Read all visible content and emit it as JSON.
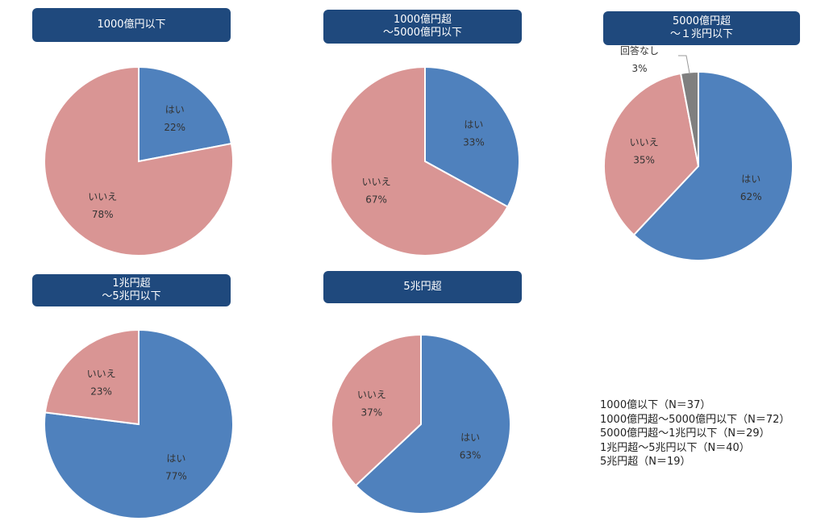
{
  "colors": {
    "yes": "#4f81bd",
    "no": "#d99594",
    "none": "#7f7f7f",
    "header": "#1f497d"
  },
  "chart_data": [
    {
      "type": "pie",
      "title": [
        "1000億円以下"
      ],
      "slices": [
        {
          "label": "はい",
          "value": 22,
          "text": "22%"
        },
        {
          "label": "いいえ",
          "value": 78,
          "text": "78%"
        }
      ]
    },
    {
      "type": "pie",
      "title": [
        "1000億円超",
        "～5000億円以下"
      ],
      "slices": [
        {
          "label": "はい",
          "value": 33,
          "text": "33%"
        },
        {
          "label": "いいえ",
          "value": 67,
          "text": "67%"
        }
      ]
    },
    {
      "type": "pie",
      "title": [
        "5000億円超",
        "～１兆円以下"
      ],
      "slices": [
        {
          "label": "はい",
          "value": 62,
          "text": "62%"
        },
        {
          "label": "いいえ",
          "value": 35,
          "text": "35%"
        },
        {
          "label": "回答なし",
          "value": 3,
          "text": "3%"
        }
      ]
    },
    {
      "type": "pie",
      "title": [
        "1兆円超",
        "～5兆円以下"
      ],
      "slices": [
        {
          "label": "はい",
          "value": 77,
          "text": "77%"
        },
        {
          "label": "いいえ",
          "value": 23,
          "text": "23%"
        }
      ]
    },
    {
      "type": "pie",
      "title": [
        "5兆円超"
      ],
      "slices": [
        {
          "label": "はい",
          "value": 63,
          "text": "63%"
        },
        {
          "label": "いいえ",
          "value": 37,
          "text": "37%"
        }
      ]
    }
  ],
  "legend": [
    "1000億以下（N＝37）",
    "1000億円超～5000億円以下（N＝72）",
    "5000億円超～1兆円以下（N＝29）",
    "1兆円超～5兆円以下（N＝40）",
    "5兆円超（N＝19）"
  ]
}
